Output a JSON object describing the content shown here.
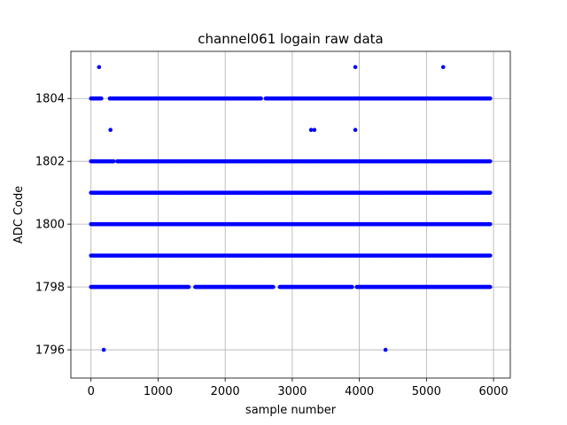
{
  "chart_data": {
    "type": "scatter",
    "title": "channel061 logain raw data",
    "xlabel": "sample number",
    "ylabel": "ADC Code",
    "xlim": [
      -300,
      6250
    ],
    "ylim": [
      1795.1,
      1805.5
    ],
    "xticks": [
      0,
      1000,
      2000,
      3000,
      4000,
      5000,
      6000
    ],
    "yticks": [
      1796,
      1798,
      1800,
      1802,
      1804
    ],
    "grid": true,
    "marker_color": "#0000ff",
    "x_range_of_samples": [
      0,
      5950
    ],
    "series": [
      {
        "bands": [
          {
            "y": 1798,
            "x_start": 0,
            "x_end": 5950,
            "gaps": [
              [
                1460,
                1540
              ],
              [
                2720,
                2800
              ],
              [
                3900,
                3960
              ]
            ]
          },
          {
            "y": 1799,
            "x_start": 0,
            "x_end": 5950,
            "gaps": []
          },
          {
            "y": 1800,
            "x_start": 0,
            "x_end": 5950,
            "gaps": []
          },
          {
            "y": 1801,
            "x_start": 0,
            "x_end": 5950,
            "gaps": []
          },
          {
            "y": 1802,
            "x_start": 0,
            "x_end": 5950,
            "gaps": [
              [
                340,
                380
              ]
            ]
          },
          {
            "y": 1804,
            "x_start": 0,
            "x_end": 5950,
            "gaps": [
              [
                160,
                270
              ],
              [
                2540,
                2600
              ]
            ]
          }
        ],
        "points": [
          {
            "x": 120,
            "y": 1805
          },
          {
            "x": 3940,
            "y": 1805
          },
          {
            "x": 5250,
            "y": 1805
          },
          {
            "x": 290,
            "y": 1803
          },
          {
            "x": 3280,
            "y": 1803
          },
          {
            "x": 3330,
            "y": 1803
          },
          {
            "x": 3940,
            "y": 1803
          },
          {
            "x": 190,
            "y": 1796
          },
          {
            "x": 4390,
            "y": 1796
          }
        ]
      }
    ]
  }
}
